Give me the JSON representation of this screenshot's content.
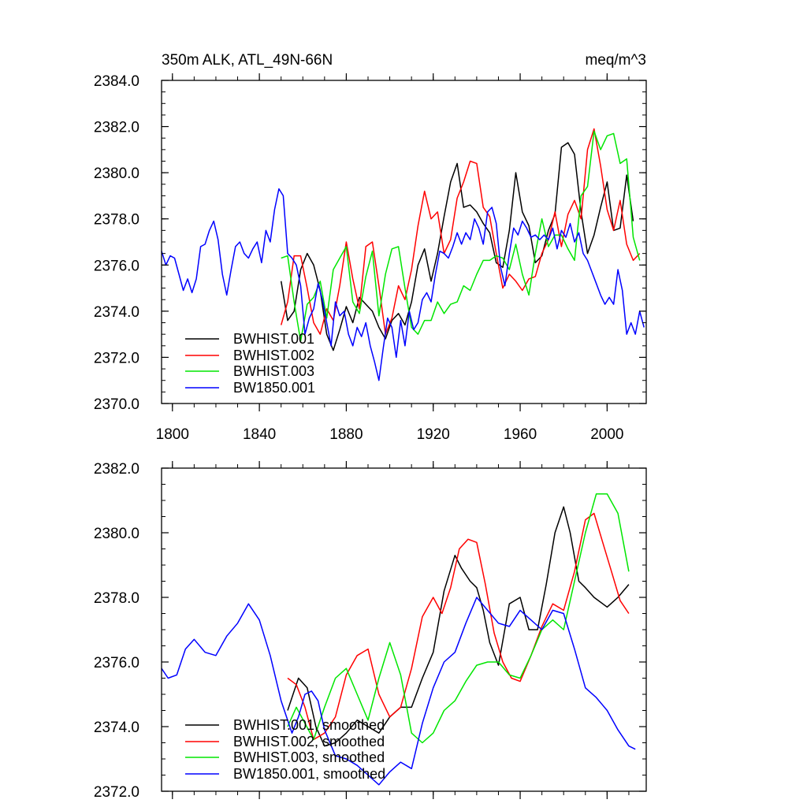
{
  "chart_data": [
    {
      "type": "line",
      "title_left": "350m ALK, ATL_49N-66N",
      "title_right": "meq/m^3",
      "xlim": [
        1795,
        2018
      ],
      "ylim": [
        2370,
        2384
      ],
      "xticks": [
        1800,
        1840,
        1880,
        1920,
        1960,
        2000
      ],
      "yticks": [
        2370.0,
        2372.0,
        2374.0,
        2376.0,
        2378.0,
        2380.0,
        2382.0,
        2384.0
      ],
      "ytick_labels": [
        "2370.0",
        "2372.0",
        "2374.0",
        "2376.0",
        "2378.0",
        "2380.0",
        "2382.0",
        "2384.0"
      ],
      "xtick_labels": [
        "1800",
        "1840",
        "1880",
        "1920",
        "1960",
        "2000"
      ],
      "legend": [
        "BWHIST.001",
        "BWHIST.002",
        "BWHIST.003",
        "BW1850.001"
      ],
      "series": [
        {
          "name": "BWHIST.001",
          "color": "#000000",
          "x": [
            1850,
            1853,
            1856,
            1859,
            1862,
            1865,
            1868,
            1871,
            1874,
            1877,
            1880,
            1883,
            1886,
            1889,
            1892,
            1895,
            1898,
            1901,
            1904,
            1907,
            1910,
            1913,
            1916,
            1919,
            1922,
            1925,
            1928,
            1931,
            1934,
            1937,
            1940,
            1943,
            1946,
            1949,
            1952,
            1955,
            1958,
            1961,
            1964,
            1967,
            1970,
            1973,
            1976,
            1979,
            1982,
            1985,
            1988,
            1991,
            1994,
            1997,
            2000,
            2003,
            2006,
            2009,
            2012
          ],
          "y": [
            2375.3,
            2373.6,
            2374.0,
            2375.8,
            2376.5,
            2376.0,
            2374.9,
            2373.0,
            2372.3,
            2373.2,
            2374.2,
            2373.5,
            2374.6,
            2374.3,
            2374.0,
            2373.3,
            2372.8,
            2373.6,
            2373.9,
            2373.4,
            2374.4,
            2376.0,
            2376.7,
            2375.3,
            2376.5,
            2378.1,
            2379.6,
            2380.4,
            2378.5,
            2378.6,
            2378.3,
            2377.8,
            2377.4,
            2376.1,
            2375.9,
            2377.5,
            2380.0,
            2378.3,
            2377.7,
            2376.1,
            2376.4,
            2377.5,
            2378.2,
            2381.1,
            2381.3,
            2380.8,
            2378.3,
            2376.5,
            2377.3,
            2378.5,
            2379.6,
            2377.5,
            2377.6,
            2379.9,
            2377.9
          ]
        },
        {
          "name": "BWHIST.002",
          "color": "#ff0000",
          "x": [
            1850,
            1853,
            1856,
            1859,
            1862,
            1865,
            1868,
            1871,
            1874,
            1877,
            1880,
            1883,
            1886,
            1889,
            1892,
            1895,
            1898,
            1901,
            1904,
            1907,
            1910,
            1913,
            1916,
            1919,
            1922,
            1925,
            1928,
            1931,
            1934,
            1937,
            1940,
            1943,
            1946,
            1949,
            1952,
            1955,
            1958,
            1961,
            1964,
            1967,
            1970,
            1973,
            1976,
            1979,
            1982,
            1985,
            1988,
            1991,
            1994,
            1997,
            2000,
            2003,
            2006,
            2009,
            2012,
            2015
          ],
          "y": [
            2373.4,
            2374.4,
            2376.4,
            2376.4,
            2375.0,
            2373.5,
            2373.0,
            2374.1,
            2373.6,
            2375.1,
            2377.0,
            2375.4,
            2374.1,
            2376.8,
            2377.0,
            2375.1,
            2373.0,
            2373.7,
            2375.1,
            2374.5,
            2375.8,
            2377.7,
            2379.2,
            2378.0,
            2378.3,
            2376.5,
            2377.1,
            2378.9,
            2379.6,
            2380.5,
            2380.4,
            2378.5,
            2378.1,
            2376.5,
            2375.0,
            2375.6,
            2375.3,
            2374.9,
            2375.4,
            2375.5,
            2376.5,
            2377.1,
            2378.3,
            2376.8,
            2378.2,
            2378.8,
            2378.0,
            2381.0,
            2381.9,
            2380.3,
            2378.4,
            2377.5,
            2378.8,
            2376.9,
            2376.2,
            2376.5
          ]
        },
        {
          "name": "BWHIST.003",
          "color": "#00e600",
          "x": [
            1850,
            1853,
            1856,
            1859,
            1862,
            1865,
            1868,
            1871,
            1874,
            1877,
            1880,
            1883,
            1886,
            1889,
            1892,
            1895,
            1898,
            1901,
            1904,
            1907,
            1910,
            1913,
            1916,
            1919,
            1922,
            1925,
            1928,
            1931,
            1934,
            1937,
            1940,
            1943,
            1946,
            1949,
            1952,
            1955,
            1958,
            1961,
            1964,
            1967,
            1970,
            1973,
            1976,
            1979,
            1982,
            1985,
            1988,
            1991,
            1994,
            1997,
            2000,
            2003,
            2006,
            2009,
            2012,
            2015
          ],
          "y": [
            2376.3,
            2376.4,
            2374.4,
            2372.7,
            2374.3,
            2374.6,
            2375.3,
            2373.7,
            2375.8,
            2376.3,
            2376.8,
            2374.4,
            2373.9,
            2375.5,
            2376.6,
            2373.8,
            2375.6,
            2376.7,
            2376.8,
            2375.0,
            2373.3,
            2373.0,
            2373.6,
            2373.6,
            2374.4,
            2373.9,
            2374.3,
            2374.4,
            2375.1,
            2374.9,
            2375.6,
            2376.2,
            2376.2,
            2376.4,
            2376.3,
            2375.8,
            2376.9,
            2375.6,
            2374.7,
            2376.5,
            2378.0,
            2376.8,
            2377.3,
            2377.3,
            2376.7,
            2376.2,
            2379.0,
            2379.4,
            2381.8,
            2381.0,
            2381.6,
            2381.7,
            2380.4,
            2380.6,
            2377.2,
            2376.2
          ]
        },
        {
          "name": "BW1850.001",
          "color": "#0000ff",
          "x": [
            1795,
            1797,
            1799,
            1801,
            1803,
            1805,
            1807,
            1809,
            1811,
            1813,
            1815,
            1817,
            1819,
            1821,
            1823,
            1825,
            1827,
            1829,
            1831,
            1833,
            1835,
            1837,
            1839,
            1841,
            1843,
            1845,
            1847,
            1849,
            1851,
            1853,
            1855,
            1857,
            1859,
            1861,
            1863,
            1865,
            1867,
            1869,
            1871,
            1873,
            1875,
            1877,
            1879,
            1881,
            1883,
            1885,
            1887,
            1889,
            1891,
            1893,
            1895,
            1897,
            1899,
            1901,
            1903,
            1905,
            1907,
            1909,
            1911,
            1913,
            1915,
            1917,
            1919,
            1921,
            1923,
            1925,
            1927,
            1929,
            1931,
            1933,
            1935,
            1937,
            1939,
            1941,
            1943,
            1945,
            1947,
            1949,
            1951,
            1953,
            1955,
            1957,
            1959,
            1961,
            1963,
            1965,
            1967,
            1969,
            1971,
            1973,
            1975,
            1977,
            1979,
            1981,
            1983,
            1985,
            1987,
            1989,
            1991,
            1993,
            1995,
            1997,
            1999,
            2001,
            2003,
            2005,
            2007,
            2009,
            2011,
            2013,
            2015,
            2017
          ],
          "y": [
            2376.6,
            2376.0,
            2376.4,
            2376.3,
            2375.6,
            2374.9,
            2375.4,
            2374.8,
            2375.4,
            2376.8,
            2376.9,
            2377.5,
            2377.9,
            2377.1,
            2375.6,
            2374.7,
            2375.8,
            2376.8,
            2377.0,
            2376.5,
            2376.3,
            2376.7,
            2377.0,
            2376.1,
            2377.5,
            2377.0,
            2378.4,
            2379.3,
            2379.0,
            2376.5,
            2376.3,
            2376.0,
            2375.1,
            2373.0,
            2373.7,
            2374.1,
            2375.2,
            2374.5,
            2373.5,
            2372.5,
            2374.4,
            2373.8,
            2374.0,
            2373.0,
            2372.5,
            2373.3,
            2372.9,
            2373.5,
            2372.5,
            2371.8,
            2371.0,
            2372.4,
            2373.7,
            2373.3,
            2372.0,
            2373.6,
            2372.5,
            2374.0,
            2373.2,
            2373.5,
            2374.5,
            2374.8,
            2374.4,
            2375.6,
            2376.6,
            2376.5,
            2376.3,
            2376.8,
            2377.4,
            2376.9,
            2377.4,
            2377.1,
            2378.0,
            2377.6,
            2376.9,
            2378.3,
            2378.5,
            2377.8,
            2375.9,
            2375.1,
            2376.5,
            2377.6,
            2377.3,
            2377.9,
            2377.6,
            2377.2,
            2377.3,
            2377.1,
            2377.3,
            2377.1,
            2377.6,
            2376.7,
            2377.5,
            2377.2,
            2377.8,
            2377.0,
            2377.4,
            2376.5,
            2376.2,
            2375.7,
            2375.2,
            2374.7,
            2374.3,
            2374.6,
            2374.3,
            2375.8,
            2374.9,
            2373.0,
            2373.5,
            2373.0,
            2374.0,
            2373.3
          ]
        }
      ]
    },
    {
      "type": "line",
      "xlim": [
        1795,
        2018
      ],
      "ylim": [
        2372,
        2382
      ],
      "xticks": [
        1800,
        1840,
        1880,
        1920,
        1960,
        2000
      ],
      "yticks": [
        2372.0,
        2374.0,
        2376.0,
        2378.0,
        2380.0,
        2382.0
      ],
      "ytick_labels": [
        "2372.0",
        "2374.0",
        "2376.0",
        "2378.0",
        "2380.0",
        "2382.0"
      ],
      "legend": [
        "BWHIST.001, smoothed",
        "BWHIST.002, smoothed",
        "BWHIST.003, smoothed",
        "BW1850.001, smoothed"
      ],
      "series": [
        {
          "name": "BWHIST.001, smoothed",
          "color": "#000000",
          "x": [
            1853,
            1858,
            1862,
            1866,
            1870,
            1875,
            1880,
            1885,
            1890,
            1895,
            1900,
            1905,
            1910,
            1915,
            1920,
            1925,
            1930,
            1933,
            1937,
            1940,
            1943,
            1946,
            1950,
            1955,
            1960,
            1964,
            1968,
            1972,
            1976,
            1980,
            1983,
            1987,
            1990,
            1994,
            2000,
            2005,
            2010
          ],
          "y": [
            2374.5,
            2375.5,
            2375.2,
            2374.0,
            2373.4,
            2373.5,
            2373.8,
            2374.2,
            2374.0,
            2373.8,
            2374.3,
            2374.6,
            2374.6,
            2375.5,
            2376.3,
            2378.2,
            2379.3,
            2378.9,
            2378.5,
            2378.3,
            2377.6,
            2376.6,
            2375.9,
            2377.8,
            2378.0,
            2377.0,
            2377.0,
            2378.4,
            2380.0,
            2380.8,
            2380.0,
            2378.5,
            2378.3,
            2378.0,
            2377.7,
            2378.0,
            2378.4
          ]
        },
        {
          "name": "BWHIST.002, smoothed",
          "color": "#ff0000",
          "x": [
            1853,
            1857,
            1861,
            1865,
            1870,
            1875,
            1880,
            1885,
            1890,
            1895,
            1900,
            1905,
            1910,
            1915,
            1920,
            1924,
            1928,
            1932,
            1936,
            1940,
            1944,
            1948,
            1952,
            1956,
            1960,
            1965,
            1970,
            1975,
            1980,
            1985,
            1990,
            1994,
            1998,
            2002,
            2006,
            2010
          ],
          "y": [
            2375.5,
            2375.3,
            2374.6,
            2373.6,
            2373.8,
            2374.3,
            2375.6,
            2376.2,
            2376.4,
            2375.0,
            2374.3,
            2374.6,
            2375.8,
            2377.4,
            2378.0,
            2377.5,
            2378.3,
            2379.5,
            2379.8,
            2379.7,
            2378.4,
            2376.9,
            2376.0,
            2375.5,
            2375.4,
            2376.2,
            2377.1,
            2377.8,
            2377.6,
            2378.8,
            2380.4,
            2380.6,
            2379.7,
            2378.8,
            2377.9,
            2377.5
          ]
        },
        {
          "name": "BWHIST.003, smoothed",
          "color": "#00e600",
          "x": [
            1853,
            1857,
            1861,
            1865,
            1870,
            1875,
            1880,
            1885,
            1890,
            1895,
            1900,
            1905,
            1910,
            1915,
            1920,
            1925,
            1930,
            1935,
            1940,
            1945,
            1950,
            1955,
            1960,
            1965,
            1970,
            1975,
            1980,
            1985,
            1990,
            1995,
            2000,
            2005,
            2010
          ],
          "y": [
            2374.0,
            2374.6,
            2374.1,
            2373.6,
            2374.6,
            2375.5,
            2375.8,
            2375.0,
            2374.2,
            2375.5,
            2376.6,
            2375.6,
            2373.8,
            2373.5,
            2373.8,
            2374.5,
            2374.8,
            2375.4,
            2375.9,
            2376.0,
            2376.0,
            2375.6,
            2375.5,
            2376.2,
            2377.0,
            2377.3,
            2377.0,
            2378.5,
            2380.0,
            2381.2,
            2381.2,
            2380.6,
            2378.8
          ]
        },
        {
          "name": "BW1850.001, smoothed",
          "color": "#0000ff",
          "x": [
            1795,
            1798,
            1802,
            1806,
            1810,
            1815,
            1820,
            1825,
            1830,
            1835,
            1840,
            1845,
            1850,
            1855,
            1858,
            1861,
            1864,
            1867,
            1870,
            1875,
            1880,
            1885,
            1890,
            1895,
            1900,
            1905,
            1910,
            1915,
            1920,
            1925,
            1930,
            1935,
            1940,
            1945,
            1950,
            1955,
            1960,
            1965,
            1970,
            1975,
            1980,
            1985,
            1990,
            1995,
            2000,
            2005,
            2010,
            2013
          ],
          "y": [
            2375.8,
            2375.5,
            2375.6,
            2376.4,
            2376.7,
            2376.3,
            2376.2,
            2376.8,
            2377.2,
            2377.8,
            2377.3,
            2376.2,
            2374.8,
            2373.8,
            2374.3,
            2375.0,
            2375.1,
            2374.8,
            2373.9,
            2373.1,
            2373.0,
            2372.8,
            2372.5,
            2372.2,
            2372.6,
            2372.9,
            2372.7,
            2374.1,
            2375.2,
            2376.0,
            2376.3,
            2377.2,
            2378.0,
            2377.6,
            2377.2,
            2377.1,
            2377.6,
            2377.3,
            2377.0,
            2377.6,
            2377.5,
            2376.4,
            2375.2,
            2374.9,
            2374.5,
            2373.9,
            2373.4,
            2373.3
          ]
        }
      ]
    }
  ]
}
